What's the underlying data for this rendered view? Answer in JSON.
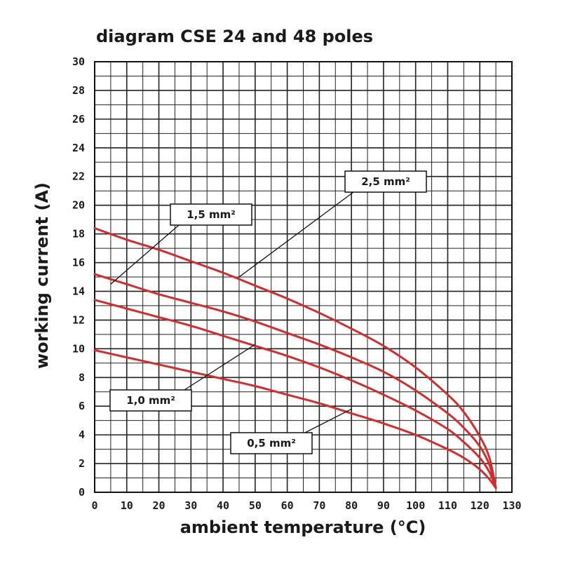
{
  "chart_data": {
    "type": "line",
    "title": "diagram CSE 24 and 48 poles",
    "xlabel": "ambient temperature (°C)",
    "ylabel": "working current (A)",
    "xlim": [
      0,
      130
    ],
    "ylim": [
      0,
      30
    ],
    "x_ticks": [
      "0",
      "10",
      "20",
      "30",
      "40",
      "50",
      "60",
      "70",
      "80",
      "90",
      "100",
      "110",
      "120",
      "130"
    ],
    "y_ticks": [
      "0",
      "2",
      "4",
      "6",
      "8",
      "10",
      "12",
      "14",
      "16",
      "18",
      "20",
      "22",
      "24",
      "26",
      "28",
      "30"
    ],
    "grid": true,
    "line_color": "#d62b2b",
    "series": [
      {
        "name": "2,5 mm²",
        "points": [
          [
            0,
            18.4
          ],
          [
            10,
            17.6
          ],
          [
            20,
            16.9
          ],
          [
            30,
            16.1
          ],
          [
            40,
            15.3
          ],
          [
            50,
            14.4
          ],
          [
            60,
            13.5
          ],
          [
            70,
            12.5
          ],
          [
            80,
            11.4
          ],
          [
            90,
            10.2
          ],
          [
            100,
            8.7
          ],
          [
            110,
            6.8
          ],
          [
            115,
            5.6
          ],
          [
            120,
            3.9
          ],
          [
            123,
            2.4
          ],
          [
            125,
            0.3
          ]
        ]
      },
      {
        "name": "1,5 mm²",
        "points": [
          [
            0,
            15.2
          ],
          [
            10,
            14.5
          ],
          [
            20,
            13.8
          ],
          [
            30,
            13.2
          ],
          [
            40,
            12.6
          ],
          [
            50,
            11.9
          ],
          [
            60,
            11.1
          ],
          [
            70,
            10.3
          ],
          [
            80,
            9.4
          ],
          [
            90,
            8.4
          ],
          [
            100,
            7.1
          ],
          [
            110,
            5.5
          ],
          [
            115,
            4.5
          ],
          [
            120,
            3.2
          ],
          [
            123,
            1.9
          ],
          [
            125,
            0.3
          ]
        ]
      },
      {
        "name": "1,0 mm²",
        "points": [
          [
            0,
            13.4
          ],
          [
            10,
            12.8
          ],
          [
            20,
            12.2
          ],
          [
            30,
            11.6
          ],
          [
            40,
            10.9
          ],
          [
            50,
            10.2
          ],
          [
            60,
            9.5
          ],
          [
            70,
            8.7
          ],
          [
            80,
            7.8
          ],
          [
            90,
            6.8
          ],
          [
            100,
            5.7
          ],
          [
            110,
            4.4
          ],
          [
            115,
            3.5
          ],
          [
            120,
            2.4
          ],
          [
            123,
            1.4
          ],
          [
            125,
            0.3
          ]
        ]
      },
      {
        "name": "0,5 mm²",
        "points": [
          [
            0,
            9.9
          ],
          [
            10,
            9.4
          ],
          [
            20,
            8.9
          ],
          [
            30,
            8.4
          ],
          [
            40,
            7.9
          ],
          [
            50,
            7.4
          ],
          [
            60,
            6.8
          ],
          [
            70,
            6.2
          ],
          [
            80,
            5.5
          ],
          [
            90,
            4.8
          ],
          [
            100,
            4.0
          ],
          [
            110,
            3.0
          ],
          [
            115,
            2.4
          ],
          [
            120,
            1.6
          ],
          [
            123,
            0.9
          ],
          [
            125,
            0.3
          ]
        ]
      }
    ],
    "annotations": [
      {
        "label": "2,5 mm²",
        "pointer": [
          45,
          15.0
        ]
      },
      {
        "label": "1,5 mm²",
        "pointer": [
          5,
          14.5
        ]
      },
      {
        "label": "1,0 mm²",
        "pointer": [
          50,
          10.3
        ]
      },
      {
        "label": "0,5 mm²",
        "pointer": [
          80,
          5.8
        ]
      }
    ]
  }
}
